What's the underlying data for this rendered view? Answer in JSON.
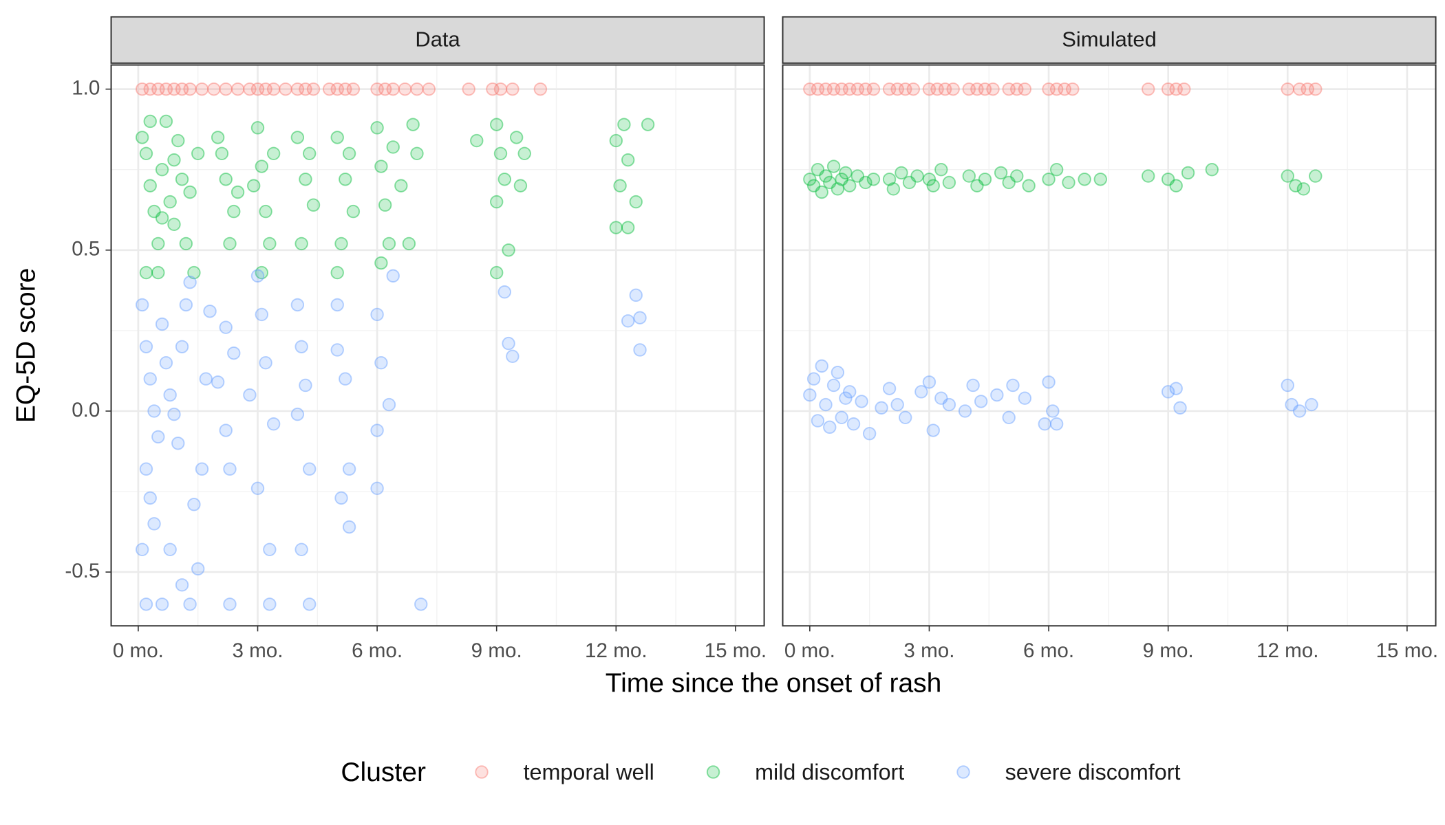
{
  "xlabel": "Time since the onset of rash",
  "ylabel": "EQ-5D score",
  "legend": {
    "title": "Cluster"
  },
  "chart_data": [
    {
      "type": "scatter",
      "title": "Data",
      "xlim": [
        -0.68,
        15.72
      ],
      "ylim": [
        -0.667,
        1.075
      ],
      "xticks": [
        {
          "value": 0,
          "label": "0 mo."
        },
        {
          "value": 3,
          "label": "3 mo."
        },
        {
          "value": 6,
          "label": "6 mo."
        },
        {
          "value": 9,
          "label": "9 mo."
        },
        {
          "value": 12,
          "label": "12 mo."
        },
        {
          "value": 15,
          "label": "15 mo."
        }
      ],
      "yticks": [
        {
          "value": -0.5,
          "label": "-0.5"
        },
        {
          "value": 0,
          "label": "0.0"
        },
        {
          "value": 0.5,
          "label": "0.5"
        },
        {
          "value": 1,
          "label": "1.0"
        }
      ],
      "grid": true,
      "series": [
        {
          "name": "temporal well",
          "color": "#F8766D",
          "x": [
            0.1,
            0.3,
            0.5,
            0.7,
            0.9,
            1.1,
            1.3,
            1.6,
            1.9,
            2.2,
            2.5,
            2.8,
            3.0,
            3.2,
            3.4,
            3.7,
            4.0,
            4.2,
            4.4,
            4.8,
            5.0,
            5.2,
            5.4,
            6.0,
            6.2,
            6.4,
            6.7,
            7.0,
            7.3,
            8.3,
            8.9,
            9.1,
            9.4,
            10.1
          ],
          "values": [
            1,
            1,
            1,
            1,
            1,
            1,
            1,
            1,
            1,
            1,
            1,
            1,
            1,
            1,
            1,
            1,
            1,
            1,
            1,
            1,
            1,
            1,
            1,
            1,
            1,
            1,
            1,
            1,
            1,
            1,
            1,
            1,
            1,
            1
          ]
        },
        {
          "name": "mild discomfort",
          "color": "#00BA38",
          "x": [
            0.1,
            0.2,
            0.3,
            0.4,
            0.5,
            0.6,
            0.7,
            0.8,
            0.9,
            1.0,
            1.1,
            1.2,
            1.3,
            0.2,
            0.5,
            1.4,
            1.5,
            0.3,
            0.9,
            0.6,
            2.0,
            2.2,
            2.4,
            2.3,
            2.1,
            2.5,
            3.0,
            3.1,
            3.2,
            3.3,
            3.4,
            2.9,
            3.1,
            4.0,
            4.2,
            4.1,
            4.4,
            4.3,
            5.0,
            5.0,
            5.2,
            5.1,
            5.4,
            5.3,
            6.0,
            6.1,
            6.2,
            6.3,
            6.4,
            6.6,
            6.1,
            7.0,
            6.8,
            6.9,
            8.5,
            9.0,
            9.1,
            9.2,
            9.0,
            9.3,
            9.0,
            9.5,
            9.7,
            9.6,
            12.0,
            12.2,
            12.3,
            12.1,
            12.5,
            12.0,
            12.3,
            12.8
          ],
          "values": [
            0.85,
            0.8,
            0.7,
            0.62,
            0.52,
            0.75,
            0.9,
            0.65,
            0.58,
            0.84,
            0.72,
            0.52,
            0.68,
            0.43,
            0.43,
            0.43,
            0.8,
            0.9,
            0.78,
            0.6,
            0.85,
            0.72,
            0.62,
            0.52,
            0.8,
            0.68,
            0.88,
            0.76,
            0.62,
            0.52,
            0.8,
            0.7,
            0.43,
            0.85,
            0.72,
            0.52,
            0.64,
            0.8,
            0.43,
            0.85,
            0.72,
            0.52,
            0.62,
            0.8,
            0.88,
            0.76,
            0.64,
            0.52,
            0.82,
            0.7,
            0.46,
            0.8,
            0.52,
            0.89,
            0.84,
            0.89,
            0.8,
            0.72,
            0.65,
            0.5,
            0.43,
            0.85,
            0.8,
            0.7,
            0.84,
            0.89,
            0.78,
            0.7,
            0.65,
            0.57,
            0.57,
            0.89
          ]
        },
        {
          "name": "severe discomfort",
          "color": "#619CFF",
          "x": [
            0.1,
            0.2,
            0.3,
            0.4,
            0.5,
            0.2,
            0.3,
            0.6,
            0.7,
            0.8,
            0.9,
            1.0,
            1.1,
            1.2,
            1.3,
            0.4,
            0.1,
            0.2,
            0.6,
            1.3,
            1.1,
            1.5,
            0.8,
            1.4,
            1.6,
            1.7,
            1.8,
            2.2,
            2.0,
            2.3,
            2.2,
            2.4,
            2.3,
            2.8,
            3.0,
            3.1,
            3.2,
            3.0,
            3.3,
            3.3,
            3.4,
            4.0,
            4.1,
            4.2,
            4.3,
            4.1,
            4.3,
            4.0,
            5.0,
            5.2,
            5.1,
            5.3,
            5.3,
            5.0,
            6.0,
            6.1,
            6.0,
            6.3,
            6.0,
            6.4,
            7.1,
            9.2,
            9.3,
            9.4,
            12.5,
            12.6,
            12.6,
            12.3
          ],
          "values": [
            0.33,
            0.2,
            0.1,
            0,
            -0.08,
            -0.18,
            -0.27,
            0.27,
            0.15,
            0.05,
            -0.01,
            -0.1,
            0.2,
            0.33,
            0.4,
            -0.35,
            -0.43,
            -0.6,
            -0.6,
            -0.6,
            -0.54,
            -0.49,
            -0.43,
            -0.29,
            -0.18,
            0.1,
            0.31,
            0.26,
            0.09,
            -0.18,
            -0.06,
            0.18,
            -0.6,
            0.05,
            0.42,
            0.3,
            0.15,
            -0.24,
            -0.43,
            -0.6,
            -0.04,
            0.33,
            0.2,
            0.08,
            -0.18,
            -0.43,
            -0.6,
            -0.01,
            0.19,
            0.1,
            -0.27,
            -0.36,
            -0.18,
            0.33,
            0.3,
            0.15,
            -0.06,
            0.02,
            -0.24,
            0.42,
            -0.6,
            0.37,
            0.21,
            0.17,
            0.36,
            0.29,
            0.19,
            0.28
          ]
        }
      ]
    },
    {
      "type": "scatter",
      "title": "Simulated",
      "xlim": [
        -0.68,
        15.72
      ],
      "ylim": [
        -0.667,
        1.075
      ],
      "xticks": [
        {
          "value": 0,
          "label": "0 mo."
        },
        {
          "value": 3,
          "label": "3 mo."
        },
        {
          "value": 6,
          "label": "6 mo."
        },
        {
          "value": 9,
          "label": "9 mo."
        },
        {
          "value": 12,
          "label": "12 mo."
        },
        {
          "value": 15,
          "label": "15 mo."
        }
      ],
      "yticks": [
        -0.5,
        0,
        0.5,
        1
      ],
      "grid": true,
      "series": [
        {
          "name": "temporal well",
          "color": "#F8766D",
          "x": [
            0,
            0.2,
            0.4,
            0.6,
            0.8,
            1.0,
            1.2,
            1.4,
            1.6,
            2.0,
            2.2,
            2.4,
            2.6,
            3.0,
            3.2,
            3.4,
            3.6,
            4.0,
            4.2,
            4.4,
            4.6,
            5.0,
            5.2,
            5.4,
            6.0,
            6.2,
            6.4,
            6.6,
            8.5,
            9.0,
            9.2,
            9.4,
            12.0,
            12.3,
            12.5,
            12.7
          ],
          "values": [
            1,
            1,
            1,
            1,
            1,
            1,
            1,
            1,
            1,
            1,
            1,
            1,
            1,
            1,
            1,
            1,
            1,
            1,
            1,
            1,
            1,
            1,
            1,
            1,
            1,
            1,
            1,
            1,
            1,
            1,
            1,
            1,
            1,
            1,
            1,
            1
          ]
        },
        {
          "name": "mild discomfort",
          "color": "#00BA38",
          "x": [
            0,
            0.1,
            0.2,
            0.3,
            0.4,
            0.5,
            0.6,
            0.7,
            0.8,
            0.9,
            1.0,
            1.2,
            1.4,
            1.6,
            2.0,
            2.1,
            2.3,
            2.5,
            2.7,
            3.0,
            3.1,
            3.3,
            3.5,
            4.0,
            4.2,
            4.4,
            4.8,
            5.0,
            5.2,
            5.5,
            6.0,
            6.2,
            6.5,
            6.9,
            7.3,
            8.5,
            9.0,
            9.2,
            9.5,
            10.1,
            12.0,
            12.2,
            12.4,
            12.7
          ],
          "values": [
            0.72,
            0.7,
            0.75,
            0.68,
            0.73,
            0.71,
            0.76,
            0.69,
            0.72,
            0.74,
            0.7,
            0.73,
            0.71,
            0.72,
            0.72,
            0.69,
            0.74,
            0.71,
            0.73,
            0.72,
            0.7,
            0.75,
            0.71,
            0.73,
            0.7,
            0.72,
            0.74,
            0.71,
            0.73,
            0.7,
            0.72,
            0.75,
            0.71,
            0.72,
            0.72,
            0.73,
            0.72,
            0.7,
            0.74,
            0.75,
            0.73,
            0.7,
            0.69,
            0.73
          ]
        },
        {
          "name": "severe discomfort",
          "color": "#619CFF",
          "x": [
            0,
            0.1,
            0.2,
            0.3,
            0.4,
            0.5,
            0.6,
            0.7,
            0.8,
            0.9,
            1.0,
            1.1,
            1.3,
            1.5,
            1.8,
            2.0,
            2.2,
            2.4,
            2.8,
            3.0,
            3.1,
            3.3,
            3.5,
            3.9,
            4.1,
            4.3,
            4.7,
            5.0,
            5.1,
            5.4,
            5.9,
            6.0,
            6.1,
            6.2,
            9.0,
            9.2,
            9.3,
            12.0,
            12.1,
            12.3,
            12.6
          ],
          "values": [
            0.05,
            0.1,
            -0.03,
            0.14,
            0.02,
            -0.05,
            0.08,
            0.12,
            -0.02,
            0.04,
            0.06,
            -0.04,
            0.03,
            -0.07,
            0.01,
            0.07,
            0.02,
            -0.02,
            0.06,
            0.09,
            -0.06,
            0.04,
            0.02,
            0,
            0.08,
            0.03,
            0.05,
            -0.02,
            0.08,
            0.04,
            -0.04,
            0.09,
            0,
            -0.04,
            0.06,
            0.07,
            0.01,
            0.08,
            0.02,
            0,
            0.02
          ]
        }
      ]
    }
  ]
}
